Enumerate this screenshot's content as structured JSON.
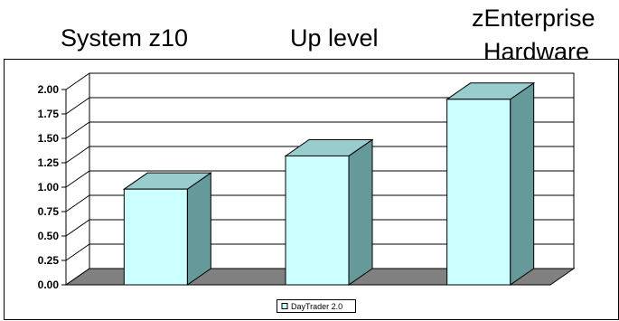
{
  "headings": [
    {
      "text": "System z10"
    },
    {
      "text": "Up level"
    },
    {
      "text": "zEnterprise"
    },
    {
      "text": "Hardware"
    }
  ],
  "chart_data": {
    "type": "bar",
    "categories": [
      "System z10",
      "Up level",
      "zEnterprise Hardware"
    ],
    "series": [
      {
        "name": "DayTrader 2.0",
        "values": [
          0.98,
          1.32,
          1.9
        ]
      }
    ],
    "ylim": [
      0,
      2.0
    ],
    "yticks": [
      "0.00",
      "0.25",
      "0.50",
      "0.75",
      "1.00",
      "1.25",
      "1.50",
      "1.75",
      "2.00"
    ],
    "grid": true,
    "legend_position": "bottom",
    "colors": {
      "bar_front": "#ccffff",
      "bar_top": "#99cccc",
      "bar_side": "#669999",
      "floor": "#808080"
    }
  }
}
